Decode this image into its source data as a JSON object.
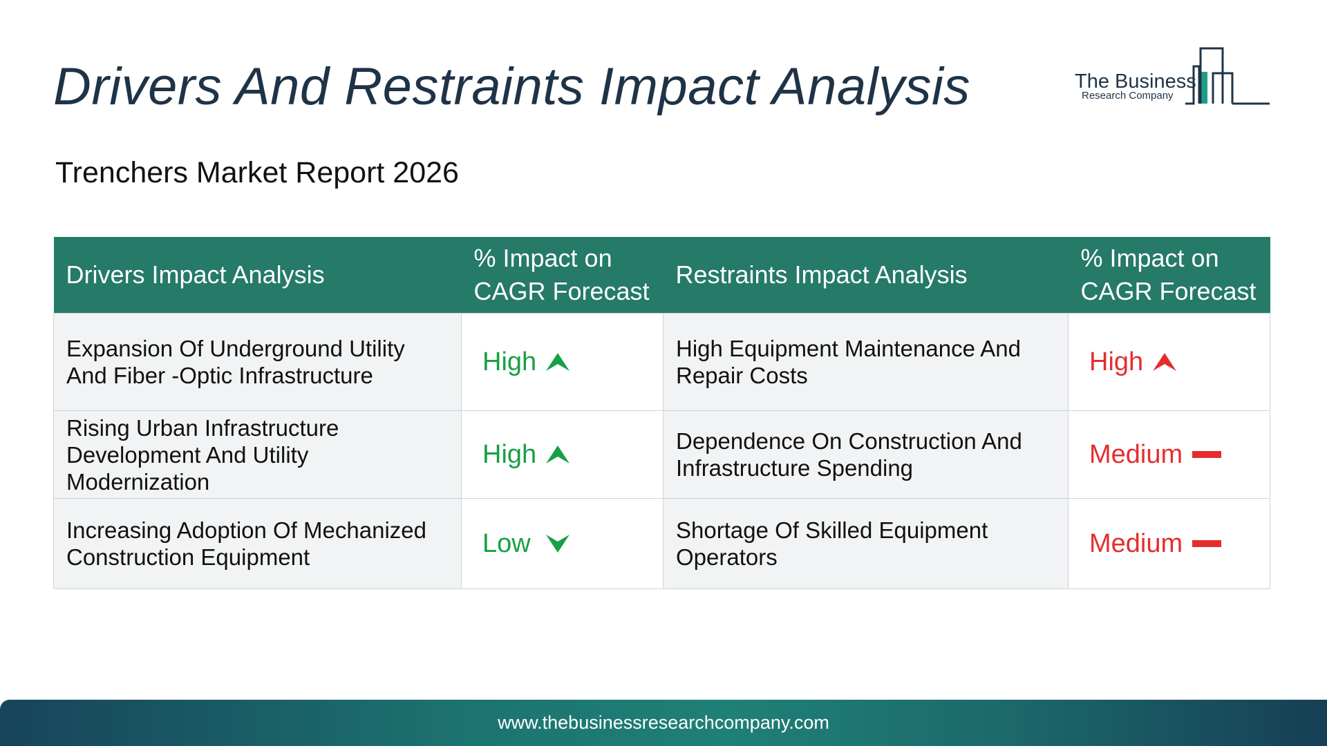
{
  "header": {
    "title": "Drivers And Restraints Impact Analysis",
    "subtitle": "Trenchers Market Report 2026"
  },
  "logo": {
    "name": "The Business",
    "tagline": "Research Company"
  },
  "table": {
    "columns": [
      "Drivers Impact Analysis",
      "% Impact on CAGR Forecast",
      "Restraints Impact Analysis",
      "% Impact on CAGR Forecast"
    ],
    "rows": [
      {
        "driver": "Expansion Of Underground Utility And Fiber -Optic Infrastructure",
        "driver_impact": "High",
        "driver_icon": "arrow-up-icon",
        "restraint": "High Equipment Maintenance And Repair Costs",
        "restraint_impact": "High",
        "restraint_icon": "arrow-up-icon"
      },
      {
        "driver": "Rising Urban Infrastructure Development And Utility Modernization",
        "driver_impact": "High",
        "driver_icon": "arrow-up-icon",
        "restraint": "Dependence On Construction And Infrastructure Spending",
        "restraint_impact": "Medium",
        "restraint_icon": "dash-icon"
      },
      {
        "driver": "Increasing Adoption Of Mechanized Construction Equipment",
        "driver_impact": "Low",
        "driver_icon": "arrow-down-icon",
        "restraint": "Shortage Of Skilled Equipment Operators",
        "restraint_impact": "Medium",
        "restraint_icon": "dash-icon"
      }
    ]
  },
  "colors": {
    "header_bg": "#257a68",
    "driver_impact": "#17a045",
    "restraint_impact": "#e52d2d",
    "title": "#1f3347"
  },
  "footer": {
    "url": "www.thebusinessresearchcompany.com"
  }
}
